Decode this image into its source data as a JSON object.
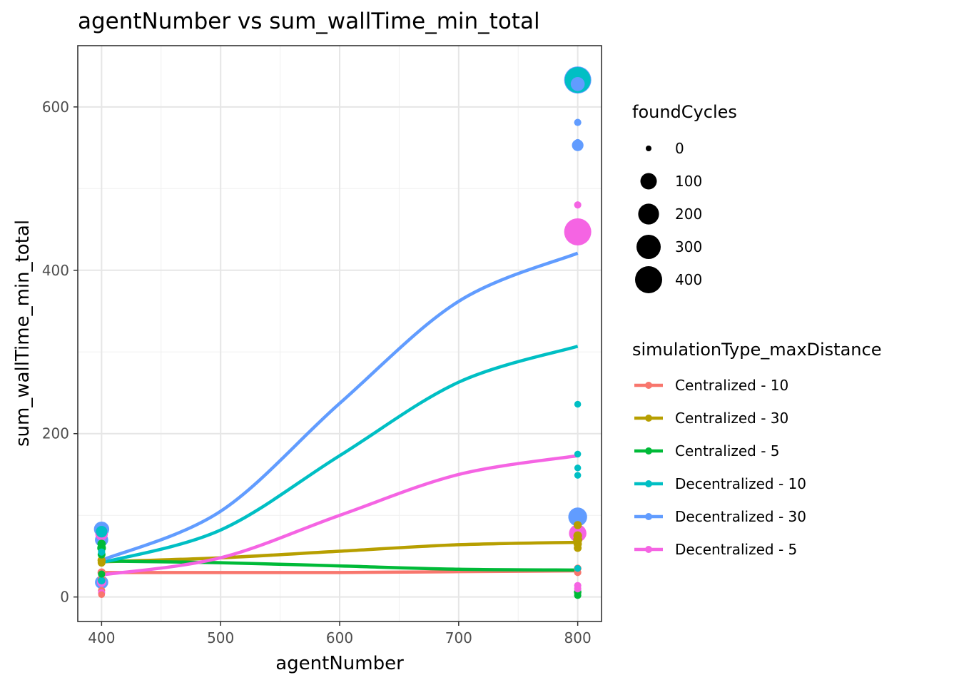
{
  "chart_data": {
    "type": "scatter",
    "title": "agentNumber  vs  sum_wallTime_min_total",
    "xlabel": "agentNumber",
    "ylabel": "sum_wallTime_min_total",
    "xlim": [
      380,
      820
    ],
    "ylim": [
      -30,
      675
    ],
    "xticks": [
      400,
      500,
      600,
      700,
      800
    ],
    "yticks": [
      0,
      200,
      400,
      600
    ],
    "grid": true,
    "legend_position": "right",
    "size_legend": {
      "title": "foundCycles",
      "values": [
        0,
        100,
        200,
        300,
        400
      ]
    },
    "color_legend": {
      "title": "simulationType_maxDistance"
    },
    "series": [
      {
        "name": "Centralized - 10",
        "color": "#F8766D",
        "points": [
          {
            "x": 400,
            "y": 30,
            "size": 5
          },
          {
            "x": 400,
            "y": 22,
            "size": 4
          },
          {
            "x": 400,
            "y": 8,
            "size": 2
          },
          {
            "x": 400,
            "y": 3,
            "size": 1
          },
          {
            "x": 800,
            "y": 35,
            "size": 3
          },
          {
            "x": 800,
            "y": 30,
            "size": 2
          }
        ],
        "curve": [
          [
            400,
            30
          ],
          [
            500,
            30
          ],
          [
            600,
            30
          ],
          [
            700,
            31
          ],
          [
            800,
            32
          ]
        ]
      },
      {
        "name": "Centralized - 30",
        "color": "#B79F00",
        "points": [
          {
            "x": 400,
            "y": 45,
            "size": 5
          },
          {
            "x": 400,
            "y": 42,
            "size": 4
          },
          {
            "x": 800,
            "y": 88,
            "size": 5
          },
          {
            "x": 800,
            "y": 75,
            "size": 8
          },
          {
            "x": 800,
            "y": 70,
            "size": 10
          },
          {
            "x": 800,
            "y": 65,
            "size": 6
          },
          {
            "x": 800,
            "y": 60,
            "size": 4
          }
        ],
        "curve": [
          [
            400,
            43
          ],
          [
            500,
            48
          ],
          [
            600,
            56
          ],
          [
            700,
            64
          ],
          [
            800,
            67
          ]
        ]
      },
      {
        "name": "Centralized - 5",
        "color": "#00BA38",
        "points": [
          {
            "x": 400,
            "y": 65,
            "size": 6
          },
          {
            "x": 400,
            "y": 60,
            "size": 8
          },
          {
            "x": 400,
            "y": 52,
            "size": 4
          },
          {
            "x": 400,
            "y": 28,
            "size": 2
          },
          {
            "x": 800,
            "y": 6,
            "size": 3
          },
          {
            "x": 800,
            "y": 2,
            "size": 2
          }
        ],
        "curve": [
          [
            400,
            44
          ],
          [
            500,
            42
          ],
          [
            600,
            38
          ],
          [
            700,
            34
          ],
          [
            800,
            33
          ]
        ]
      },
      {
        "name": "Decentralized - 10",
        "color": "#00BFC4",
        "points": [
          {
            "x": 400,
            "y": 80,
            "size": 30
          },
          {
            "x": 400,
            "y": 55,
            "size": 2
          },
          {
            "x": 400,
            "y": 20,
            "size": 3
          },
          {
            "x": 800,
            "y": 633,
            "size": 350
          },
          {
            "x": 800,
            "y": 236,
            "size": 1
          },
          {
            "x": 800,
            "y": 175,
            "size": 1
          },
          {
            "x": 800,
            "y": 158,
            "size": 1
          },
          {
            "x": 800,
            "y": 149,
            "size": 1
          },
          {
            "x": 800,
            "y": 35,
            "size": 1
          }
        ],
        "curve": [
          [
            400,
            42
          ],
          [
            500,
            82
          ],
          [
            600,
            173
          ],
          [
            700,
            263
          ],
          [
            800,
            307
          ]
        ]
      },
      {
        "name": "Decentralized - 30",
        "color": "#619CFF",
        "points": [
          {
            "x": 400,
            "y": 83,
            "size": 80
          },
          {
            "x": 400,
            "y": 70,
            "size": 50
          },
          {
            "x": 400,
            "y": 18,
            "size": 50
          },
          {
            "x": 800,
            "y": 633,
            "size": 400
          },
          {
            "x": 800,
            "y": 628,
            "size": 60
          },
          {
            "x": 800,
            "y": 581,
            "size": 2
          },
          {
            "x": 800,
            "y": 556,
            "size": 3
          },
          {
            "x": 800,
            "y": 553,
            "size": 30
          },
          {
            "x": 800,
            "y": 98,
            "size": 150
          }
        ],
        "curve": [
          [
            400,
            45
          ],
          [
            500,
            105
          ],
          [
            600,
            237
          ],
          [
            700,
            362
          ],
          [
            800,
            421
          ]
        ]
      },
      {
        "name": "Decentralized - 5",
        "color": "#F564E3",
        "points": [
          {
            "x": 400,
            "y": 77,
            "size": 40
          },
          {
            "x": 400,
            "y": 18,
            "size": 10
          },
          {
            "x": 400,
            "y": 5,
            "size": 2
          },
          {
            "x": 800,
            "y": 480,
            "size": 2
          },
          {
            "x": 800,
            "y": 447,
            "size": 400
          },
          {
            "x": 800,
            "y": 78,
            "size": 120
          },
          {
            "x": 800,
            "y": 14,
            "size": 2
          },
          {
            "x": 800,
            "y": 10,
            "size": 2
          }
        ],
        "curve": [
          [
            400,
            27
          ],
          [
            500,
            48
          ],
          [
            600,
            100
          ],
          [
            700,
            150
          ],
          [
            800,
            173
          ]
        ]
      }
    ]
  }
}
